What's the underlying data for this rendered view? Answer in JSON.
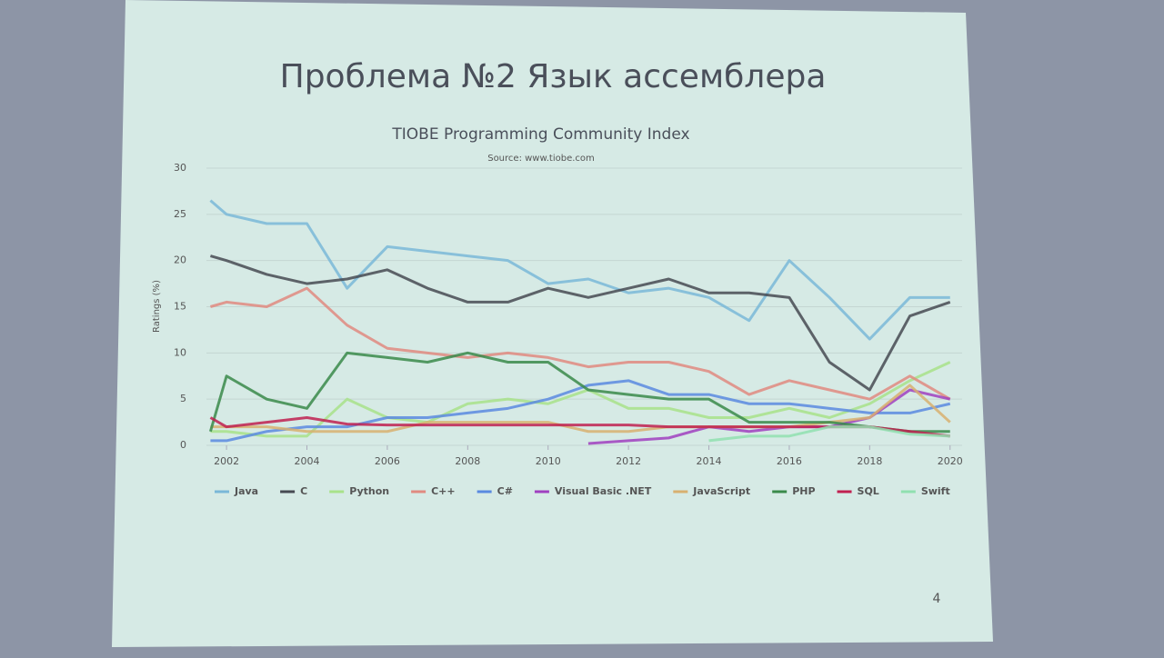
{
  "slide": {
    "title": "Проблема №2 Язык ассемблера",
    "page_number": "4"
  },
  "chart_data": {
    "type": "line",
    "title": "TIOBE Programming Community Index",
    "subtitle": "Source: www.tiobe.com",
    "y_label": "Ratings (%)",
    "x": [
      2001.6,
      2002,
      2003,
      2004,
      2005,
      2006,
      2007,
      2008,
      2009,
      2010,
      2011,
      2012,
      2013,
      2014,
      2015,
      2016,
      2017,
      2018,
      2019,
      2020
    ],
    "xlim": [
      2001.5,
      2020.3
    ],
    "xticks": [
      2002,
      2004,
      2006,
      2008,
      2010,
      2012,
      2014,
      2016,
      2018,
      2020
    ],
    "ylim": [
      0,
      30
    ],
    "yticks": [
      0,
      5,
      10,
      15,
      20,
      25,
      30
    ],
    "grid": true,
    "series": [
      {
        "name": "Java",
        "color": "#7ab8d8",
        "values": [
          26.5,
          25,
          24,
          24,
          17,
          21.5,
          21,
          20.5,
          20,
          17.5,
          18,
          16.5,
          17,
          16,
          13.5,
          20,
          16,
          11.5,
          16,
          16
        ]
      },
      {
        "name": "C",
        "color": "#474a52",
        "values": [
          20.5,
          20,
          18.5,
          17.5,
          18,
          19,
          17,
          15.5,
          15.5,
          17,
          16,
          17,
          18,
          16.5,
          16.5,
          16,
          9,
          6,
          14,
          15.5
        ]
      },
      {
        "name": "Python",
        "color": "#a8e28a",
        "values": [
          1.5,
          1.5,
          1,
          1,
          5,
          3,
          2.5,
          4.5,
          5,
          4.5,
          6,
          4,
          4,
          3,
          3,
          4,
          3,
          4.5,
          7,
          9
        ]
      },
      {
        "name": "C++",
        "color": "#e08a80",
        "values": [
          15,
          15.5,
          15,
          17,
          13,
          10.5,
          10,
          9.5,
          10,
          9.5,
          8.5,
          9,
          9,
          8,
          5.5,
          7,
          6,
          5,
          7.5,
          5
        ]
      },
      {
        "name": "C#",
        "color": "#5a8ae0",
        "values": [
          0.5,
          0.5,
          1.5,
          2,
          2,
          3,
          3,
          3.5,
          4,
          5,
          6.5,
          7,
          5.5,
          5.5,
          4.5,
          4.5,
          4,
          3.5,
          3.5,
          4.5
        ]
      },
      {
        "name": "Visual Basic .NET",
        "color": "#a040c0",
        "values": [
          null,
          null,
          null,
          null,
          null,
          null,
          null,
          null,
          null,
          null,
          0.2,
          0.5,
          0.8,
          2,
          1.5,
          2,
          2,
          3,
          6,
          5
        ]
      },
      {
        "name": "JavaScript",
        "color": "#d8b070",
        "values": [
          2,
          2,
          2,
          1.5,
          1.5,
          1.5,
          2.5,
          2.5,
          2.5,
          2.5,
          1.5,
          1.5,
          2,
          2,
          2,
          2,
          2.5,
          3,
          6.5,
          2.5
        ]
      },
      {
        "name": "PHP",
        "color": "#3a8a4a",
        "values": [
          1.5,
          7.5,
          5,
          4,
          10,
          9.5,
          9,
          10,
          9,
          9,
          6,
          5.5,
          5,
          5,
          2.5,
          2.5,
          2.5,
          2,
          1.5,
          1.5
        ]
      },
      {
        "name": "SQL",
        "color": "#c02050",
        "values": [
          3,
          2,
          2.5,
          3,
          2.3,
          2.2,
          2.2,
          2.2,
          2.2,
          2.2,
          2.2,
          2.2,
          2,
          2,
          2,
          2,
          2,
          2,
          1.5,
          1
        ]
      },
      {
        "name": "Swift",
        "color": "#90e0b0",
        "values": [
          null,
          null,
          null,
          null,
          null,
          null,
          null,
          null,
          null,
          null,
          null,
          null,
          null,
          0.5,
          1,
          1,
          2,
          2,
          1.2,
          1
        ]
      }
    ]
  }
}
